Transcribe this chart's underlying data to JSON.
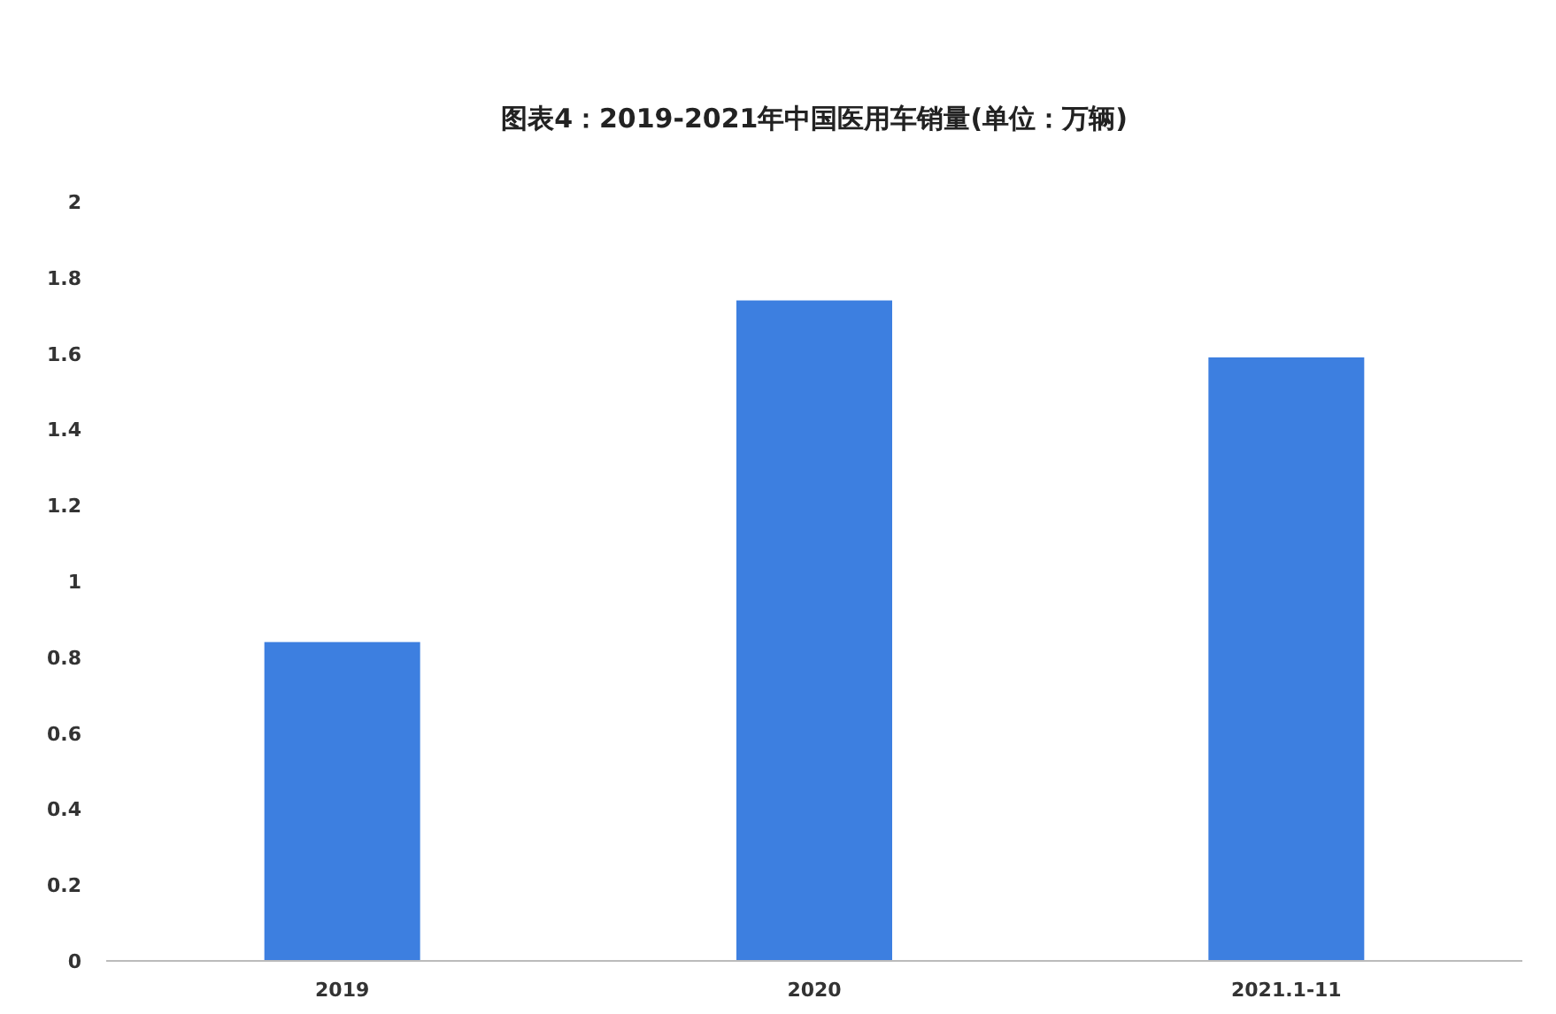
{
  "chart_data": {
    "type": "bar",
    "title": "图表4：2019-2021年中国医用车销量(单位：万辆)",
    "categories": [
      "2019",
      "2020",
      "2021.1-11"
    ],
    "values": [
      0.84,
      1.74,
      1.59
    ],
    "color": "#3d7fe0",
    "ylim": [
      0,
      2
    ],
    "yticks": [
      0,
      0.2,
      0.4,
      0.6,
      0.8,
      1,
      1.2,
      1.4,
      1.6,
      1.8,
      2
    ],
    "grid": false
  }
}
